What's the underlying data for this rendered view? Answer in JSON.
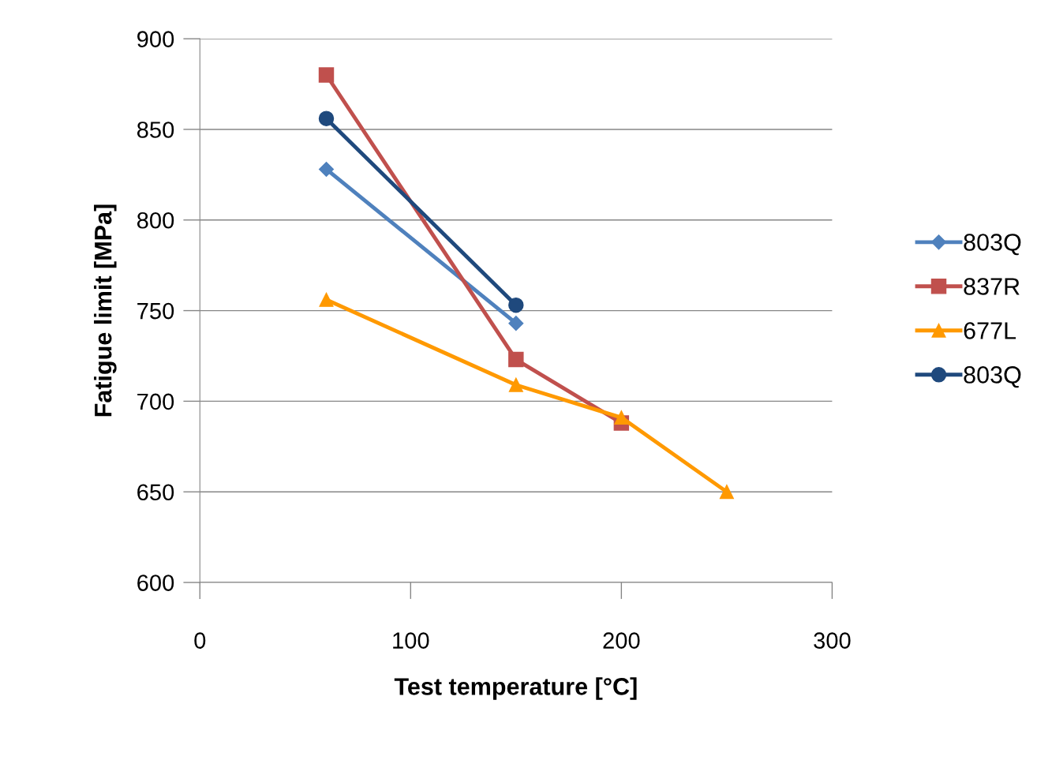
{
  "chart_data": {
    "type": "line",
    "xlabel": "Test temperature [°C]",
    "ylabel": "Fatigue limit [MPa]",
    "xlim": [
      0,
      300
    ],
    "xticks": [
      0,
      100,
      200,
      300
    ],
    "ylim": [
      600,
      900
    ],
    "yticks": [
      600,
      650,
      700,
      750,
      800,
      850,
      900
    ],
    "grid": "y",
    "legend": "right",
    "line_style": "solid",
    "series": [
      {
        "name": "803Q",
        "color": "#4f81bd",
        "marker": "diamond",
        "x": [
          60,
          150
        ],
        "values": [
          828,
          743
        ]
      },
      {
        "name": "837R",
        "color": "#c0504d",
        "marker": "square",
        "x": [
          60,
          150,
          200
        ],
        "values": [
          880,
          723,
          688
        ]
      },
      {
        "name": "677L",
        "color": "#ff9900",
        "marker": "triangle",
        "x": [
          60,
          150,
          200,
          250
        ],
        "values": [
          756,
          709,
          691,
          650
        ]
      },
      {
        "name": "803Q",
        "color": "#1f497d",
        "marker": "circle",
        "x": [
          60,
          150
        ],
        "values": [
          856,
          753
        ]
      }
    ]
  }
}
